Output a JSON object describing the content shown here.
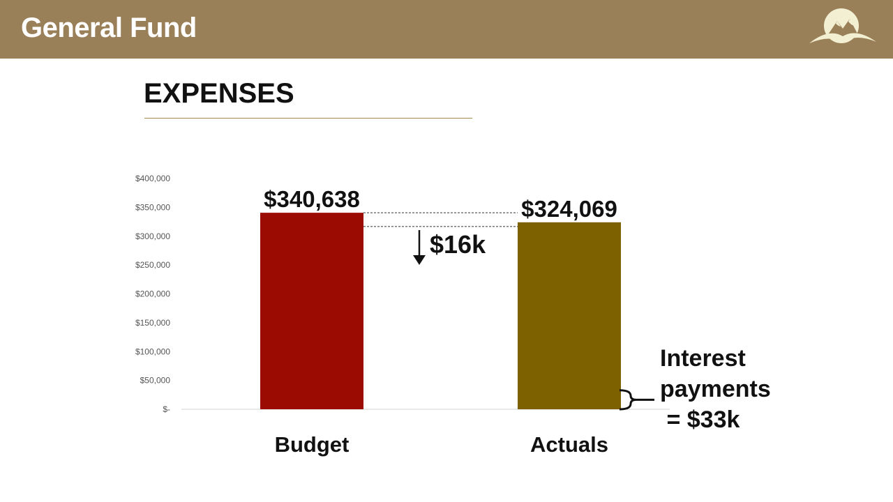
{
  "header": {
    "title": "General Fund",
    "bg_color": "#9a8058"
  },
  "logo": {
    "icon": "mountain-logo-icon",
    "color": "#f3efd2"
  },
  "section": {
    "title": "EXPENSES",
    "rule_color": "#a08a4a"
  },
  "chart_data": {
    "type": "bar",
    "categories": [
      "Budget",
      "Actuals"
    ],
    "values": [
      340638,
      324069
    ],
    "value_labels": [
      "$340,638",
      "$324,069"
    ],
    "colors": [
      "#9b0b02",
      "#7d6100"
    ],
    "ylim": [
      0,
      400000
    ],
    "yticks": [
      0,
      50000,
      100000,
      150000,
      200000,
      250000,
      300000,
      350000,
      400000
    ],
    "ytick_labels": [
      "$-",
      "$50,000",
      "$100,000",
      "$150,000",
      "$200,000",
      "$250,000",
      "$300,000",
      "$350,000",
      "$400,000"
    ],
    "grid": false,
    "annotations": {
      "difference_label": "$16k",
      "interest_note": [
        "Interest",
        "payments",
        " = $33k"
      ],
      "interest_value": 33000
    }
  }
}
